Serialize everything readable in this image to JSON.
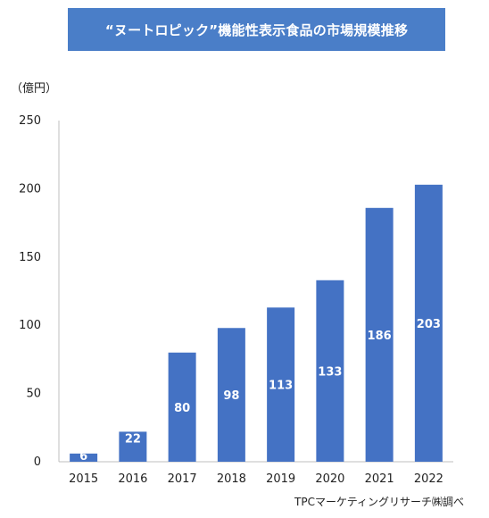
{
  "header": {
    "title": "“ヌートロピック”機能性表示食品の市場規模推移"
  },
  "unit_label": "（億円）",
  "source_label": "TPCマーケティングリサーチ㈱調べ",
  "colors": {
    "banner": "#4a7ec8",
    "bar": "#4472c4",
    "bar_label": "#ffffff",
    "axis": "#bfbfbf",
    "text": "#222222"
  },
  "chart_data": {
    "type": "bar",
    "title": "“ヌートロピック”機能性表示食品の市場規模推移",
    "ylabel": "（億円）",
    "xlabel": "",
    "categories": [
      "2015",
      "2016",
      "2017",
      "2018",
      "2019",
      "2020",
      "2021",
      "2022"
    ],
    "values": [
      6,
      22,
      80,
      98,
      113,
      133,
      186,
      203
    ],
    "data_labels": [
      "6",
      "22",
      "80",
      "98",
      "113",
      "133",
      "186",
      "203"
    ],
    "ylim": [
      0,
      250
    ],
    "yticks": [
      0,
      50,
      100,
      150,
      200,
      250
    ],
    "grid": false,
    "legend": "none"
  }
}
